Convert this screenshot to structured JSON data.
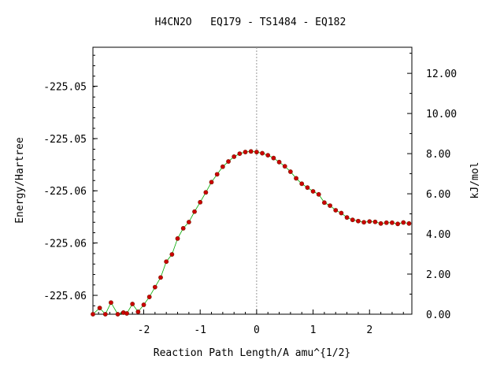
{
  "chart_data": {
    "type": "scatter",
    "title": "H4CN2O   EQ179 - TS1484 - EQ182",
    "xlabel": "Reaction Path Length/A amu^{1/2}",
    "ylabel_left": "Energy/Hartree",
    "ylabel_right": "kJ/mol",
    "xlim": [
      -2.9,
      2.75
    ],
    "ylim_kjmol": [
      0,
      13.3
    ],
    "x_ticks": [
      -2,
      -1,
      0,
      1,
      2
    ],
    "x_tick_labels": [
      "-2",
      "-1",
      "0",
      "1",
      "2"
    ],
    "left_ticks_kjmol": [
      0.94,
      3.55,
      6.15,
      8.75,
      11.36
    ],
    "left_tick_labels": [
      "-225.06",
      "-225.06",
      "-225.06",
      "-225.05",
      "-225.05"
    ],
    "right_ticks": [
      0,
      2,
      4,
      6,
      8,
      10,
      12
    ],
    "right_tick_labels": [
      "0.00",
      "2.00",
      "4.00",
      "6.00",
      "8.00",
      "10.00",
      "12.00"
    ],
    "ts_line_x": 0,
    "grid": false,
    "line_color": "#00aa00",
    "marker_color": "#cc0000",
    "points": {
      "x": [
        -2.9,
        -2.78,
        -2.68,
        -2.58,
        -2.46,
        -2.36,
        -2.3,
        -2.2,
        -2.1,
        -2.0,
        -1.9,
        -1.8,
        -1.7,
        -1.6,
        -1.5,
        -1.4,
        -1.3,
        -1.2,
        -1.1,
        -1.0,
        -0.9,
        -0.8,
        -0.7,
        -0.6,
        -0.5,
        -0.4,
        -0.3,
        -0.2,
        -0.1,
        0.0,
        0.1,
        0.2,
        0.3,
        0.4,
        0.5,
        0.6,
        0.7,
        0.8,
        0.9,
        1.0,
        1.1,
        1.2,
        1.3,
        1.4,
        1.5,
        1.6,
        1.7,
        1.8,
        1.9,
        2.0,
        2.1,
        2.2,
        2.3,
        2.4,
        2.5,
        2.6,
        2.7
      ],
      "kjmol": [
        0.0,
        0.31,
        0.0,
        0.58,
        0.0,
        0.08,
        0.04,
        0.51,
        0.12,
        0.47,
        0.86,
        1.35,
        1.83,
        2.62,
        2.98,
        3.77,
        4.28,
        4.59,
        5.11,
        5.58,
        6.07,
        6.58,
        6.97,
        7.35,
        7.61,
        7.85,
        8.0,
        8.08,
        8.11,
        8.08,
        8.02,
        7.92,
        7.78,
        7.58,
        7.37,
        7.1,
        6.77,
        6.5,
        6.31,
        6.12,
        5.97,
        5.56,
        5.41,
        5.18,
        5.04,
        4.82,
        4.7,
        4.64,
        4.58,
        4.62,
        4.6,
        4.52,
        4.56,
        4.56,
        4.5,
        4.57,
        4.52
      ]
    }
  }
}
